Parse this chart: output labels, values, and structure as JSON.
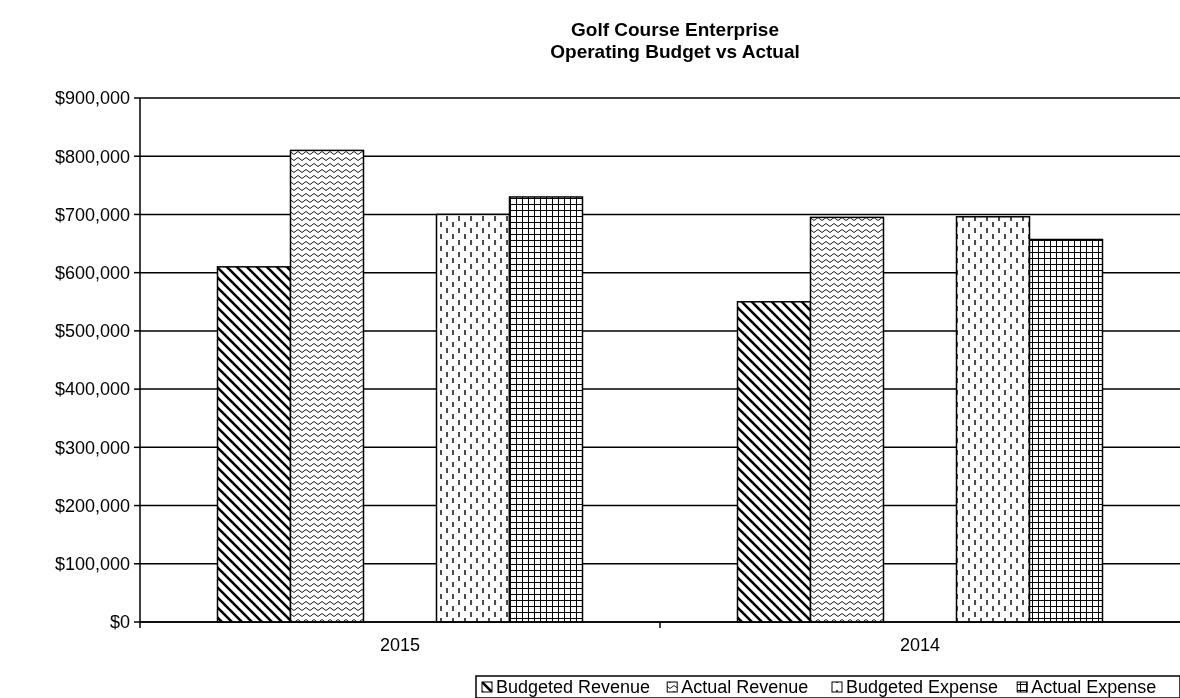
{
  "chart_data": {
    "type": "bar",
    "title": "Golf Course Enterprise\nOperating Budget vs Actual",
    "categories": [
      "2015",
      "2014"
    ],
    "series": [
      {
        "name": "Budgeted Revenue",
        "color": "#000000",
        "values": [
          610000,
          550000
        ]
      },
      {
        "name": "Actual Revenue",
        "color": "#000000",
        "values": [
          810000,
          695000
        ]
      },
      {
        "name": "Budgeted Expense",
        "color": "#000000",
        "values": [
          700000,
          696000
        ]
      },
      {
        "name": "Actual Expense",
        "color": "#000000",
        "values": [
          730000,
          657000
        ]
      }
    ],
    "ylim": [
      0,
      900000
    ],
    "yticks": [
      {
        "value": 0,
        "label": "$0"
      },
      {
        "value": 100000,
        "label": "$100,000"
      },
      {
        "value": 200000,
        "label": "$200,000"
      },
      {
        "value": 300000,
        "label": "$300,000"
      },
      {
        "value": 400000,
        "label": "$400,000"
      },
      {
        "value": 500000,
        "label": "$500,000"
      },
      {
        "value": 600000,
        "label": "$600,000"
      },
      {
        "value": 700000,
        "label": "$700,000"
      },
      {
        "value": 800000,
        "label": "$800,000"
      },
      {
        "value": 900000,
        "label": "$900,000"
      }
    ],
    "grid": "y",
    "legend": "bottom"
  }
}
